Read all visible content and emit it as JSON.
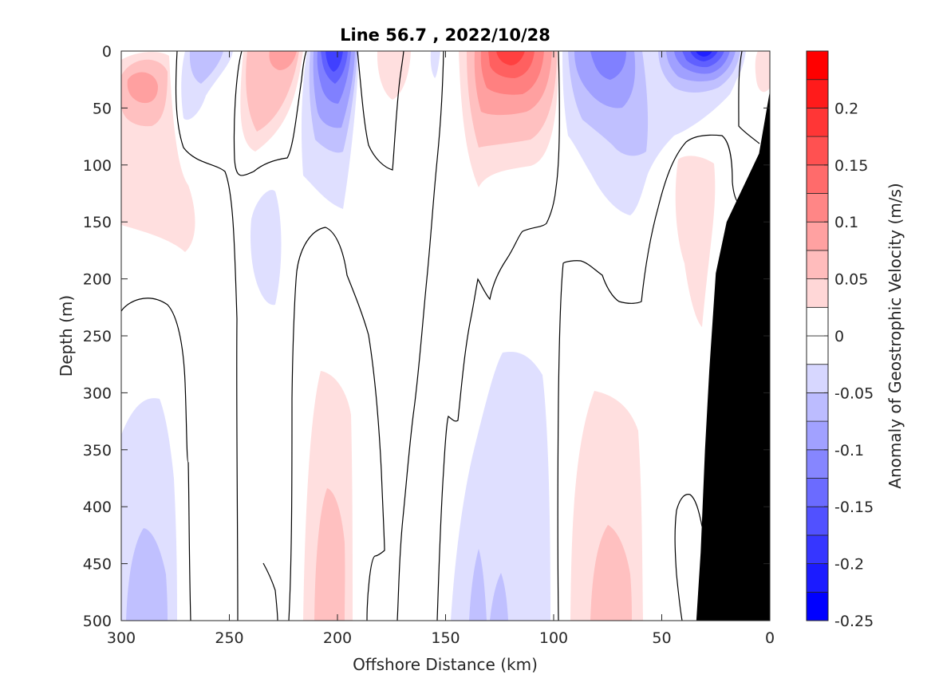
{
  "chart_data": {
    "type": "contour",
    "title": "Line 56.7 , 2022/10/28",
    "xlabel": "Offshore Distance (km)",
    "ylabel": "Depth (m)",
    "colorbar_label": "Anomaly of Geostrophic Velocity (m/s)",
    "xlim": [
      300,
      0
    ],
    "ylim": [
      0,
      500
    ],
    "x_reversed": true,
    "y_reversed": true,
    "x_ticks": [
      "300",
      "250",
      "200",
      "150",
      "100",
      "50",
      "0"
    ],
    "y_ticks": [
      "0",
      "50",
      "100",
      "150",
      "200",
      "250",
      "300",
      "350",
      "400",
      "450",
      "500"
    ],
    "colorbar_ticks": [
      "0.2",
      "0.15",
      "0.1",
      "0.05",
      "0",
      "-0.05",
      "-0.1",
      "-0.15",
      "-0.2",
      "-0.25"
    ],
    "colorbar_range": [
      -0.25,
      0.25
    ],
    "contour_levels": [
      -0.25,
      -0.225,
      -0.2,
      -0.175,
      -0.15,
      -0.125,
      -0.1,
      -0.075,
      -0.05,
      -0.025,
      0,
      0.025,
      0.05,
      0.075,
      0.1,
      0.125,
      0.15,
      0.175,
      0.2,
      0.225,
      0.25
    ],
    "colors": {
      "negative_max": "#0000ff",
      "positive_max": "#ff0000",
      "zero": "#ffffff",
      "bathymetry": "#000000",
      "zero_contour": "#000000"
    },
    "features": [
      {
        "sign": "positive",
        "x_km": 290,
        "depth_m": 40,
        "peak": 0.1
      },
      {
        "sign": "positive",
        "x_km": 290,
        "depth_m": 120,
        "peak": 0.03
      },
      {
        "sign": "negative",
        "x_km": 255,
        "depth_m": 30,
        "peak": -0.05
      },
      {
        "sign": "positive",
        "x_km": 230,
        "depth_m": 30,
        "peak": 0.075
      },
      {
        "sign": "negative",
        "x_km": 207,
        "depth_m": 30,
        "peak": -0.15
      },
      {
        "sign": "negative",
        "x_km": 233,
        "depth_m": 180,
        "peak": -0.03
      },
      {
        "sign": "positive",
        "x_km": 175,
        "depth_m": 20,
        "peak": 0.04
      },
      {
        "sign": "positive",
        "x_km": 120,
        "depth_m": 15,
        "peak": 0.2
      },
      {
        "sign": "negative",
        "x_km": 80,
        "depth_m": 35,
        "peak": -0.1
      },
      {
        "sign": "negative",
        "x_km": 30,
        "depth_m": 15,
        "peak": -0.22
      },
      {
        "sign": "positive",
        "x_km": 3,
        "depth_m": 30,
        "peak": 0.06
      },
      {
        "sign": "positive",
        "x_km": 33,
        "depth_m": 200,
        "peak": 0.04
      },
      {
        "sign": "negative",
        "x_km": 283,
        "depth_m": 430,
        "peak": -0.06
      },
      {
        "sign": "positive",
        "x_km": 205,
        "depth_m": 430,
        "peak": 0.07
      },
      {
        "sign": "negative",
        "x_km": 125,
        "depth_m": 380,
        "peak": -0.05
      },
      {
        "sign": "negative",
        "x_km": 128,
        "depth_m": 470,
        "peak": -0.08
      },
      {
        "sign": "positive",
        "x_km": 73,
        "depth_m": 440,
        "peak": 0.06
      }
    ],
    "bathymetry": [
      {
        "x_km": 0,
        "depth_m": 35
      },
      {
        "x_km": 5,
        "depth_m": 90
      },
      {
        "x_km": 10,
        "depth_m": 110
      },
      {
        "x_km": 15,
        "depth_m": 130
      },
      {
        "x_km": 20,
        "depth_m": 150
      },
      {
        "x_km": 25,
        "depth_m": 195
      },
      {
        "x_km": 28,
        "depth_m": 280
      },
      {
        "x_km": 30,
        "depth_m": 350
      },
      {
        "x_km": 32,
        "depth_m": 440
      },
      {
        "x_km": 34,
        "depth_m": 500
      }
    ]
  }
}
